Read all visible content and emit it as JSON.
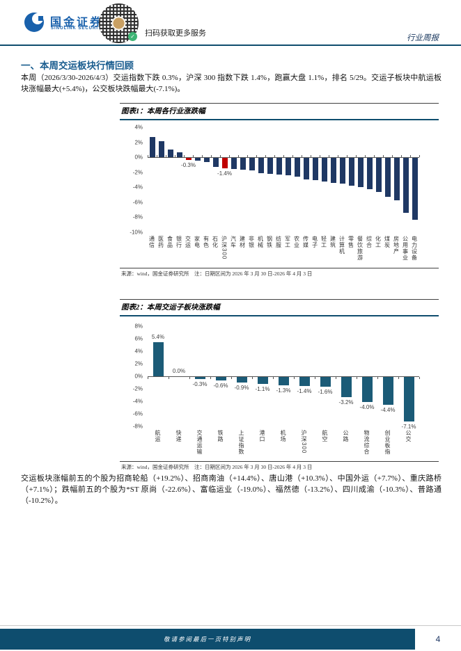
{
  "header": {
    "logo_title": "国金证券",
    "logo_subtitle": "SINOLINK SECURITIES",
    "qr_caption": "扫码获取更多服务",
    "report_type": "行业周报"
  },
  "section": {
    "heading": "一、本周交运板块行情回顾",
    "paragraph1": "本周（2026/3/30-2026/4/3）交运指数下跌 0.3%，沪深 300 指数下跌 1.4%，跑赢大盘 1.1%，排名 5/29。交运子板块中航运板块涨幅最大(+5.4%)，公交板块跌幅最大(-7.1%)。",
    "paragraph2": "交运板块涨幅前五的个股为招商轮船（+19.2%）、招商南油（+14.4%）、唐山港（+10.3%）、中国外运（+7.7%）、重庆路桥（+7.1%）；跌幅前五的个股为*ST 原尚（-22.6%）、富临运业（-19.0%）、福然德（-13.2%）、四川成渝（-10.3%）、普路通（-10.2%）。"
  },
  "figure1": {
    "title": "图表1：本周各行业涨跌幅",
    "source": "来源：wind，国金证券研究所　注：日期区间为 2026 年 3 月 30 日-2026 年 4 月 3 日"
  },
  "figure2": {
    "title": "图表2：本周交运子板块涨跌幅",
    "source": "来源：wind，国金证券研究所　注：日期区间为 2026 年 3 月 30 日-2026 年 4 月 3 日"
  },
  "footer": {
    "disclaimer": "敬请参阅最后一页特别声明",
    "page_number": "4"
  },
  "colors": {
    "navy_bar": "#1f3864",
    "red_bar": "#c00000",
    "teal_bar": "#1b5b77",
    "rule": "#0e4d6e",
    "heading_blue": "#1a5d8f",
    "logo_blue": "#1961ac"
  },
  "chart_data": [
    {
      "type": "bar",
      "title": "本周各行业涨跌幅",
      "categories": [
        "通信",
        "医药",
        "食品",
        "银行",
        "交运",
        "家电",
        "有色",
        "石化",
        "沪深300",
        "汽车",
        "建材",
        "非银",
        "机械",
        "钢铁",
        "纺服",
        "军工",
        "农业",
        "传媒",
        "电子",
        "轻工",
        "建筑",
        "计算机",
        "零售",
        "餐饮旅游",
        "综合",
        "化工",
        "煤炭",
        "房地产",
        "公用事业",
        "电力设备"
      ],
      "values": [
        2.7,
        2.1,
        1.0,
        0.7,
        -0.3,
        -0.4,
        -0.5,
        -1.2,
        -1.4,
        -1.5,
        -1.6,
        -1.7,
        -2.0,
        -2.1,
        -2.2,
        -2.3,
        -2.5,
        -2.9,
        -3.0,
        -3.1,
        -3.3,
        -3.4,
        -3.7,
        -3.9,
        -4.2,
        -4.5,
        -5.2,
        -5.6,
        -7.3,
        -8.2
      ],
      "point_labels": {
        "4": "-0.3%",
        "8": "-1.4%"
      },
      "highlight_indices": [
        4,
        8
      ],
      "bar_color": "#1f3864",
      "highlight_color": "#c00000",
      "ylim": [
        -10,
        4
      ],
      "yticks": [
        4,
        2,
        0,
        -2,
        -4,
        -6,
        -8,
        -10
      ],
      "grid": false,
      "legend": "none"
    },
    {
      "type": "bar",
      "title": "本周交运子板块涨跌幅",
      "categories": [
        "航运",
        "快递",
        "交通运输",
        "铁路",
        "上证指数",
        "港口",
        "机场",
        "沪深300",
        "航空",
        "公路",
        "物流综合",
        "创业板指",
        "公交"
      ],
      "values": [
        5.4,
        0.0,
        -0.3,
        -0.6,
        -0.9,
        -1.1,
        -1.3,
        -1.4,
        -1.6,
        -3.2,
        -4.0,
        -4.4,
        -7.1
      ],
      "labels": [
        "5.4%",
        "0.0%",
        "-0.3%",
        "-0.6%",
        "-0.9%",
        "-1.1%",
        "-1.3%",
        "-1.4%",
        "-1.6%",
        "-3.2%",
        "-4.0%",
        "-4.4%",
        "-7.1%"
      ],
      "bar_color": "#1b5b77",
      "ylim": [
        -8,
        8
      ],
      "yticks": [
        8,
        6,
        4,
        2,
        0,
        -2,
        -4,
        -6,
        -8
      ],
      "grid": false,
      "legend": "none"
    }
  ]
}
